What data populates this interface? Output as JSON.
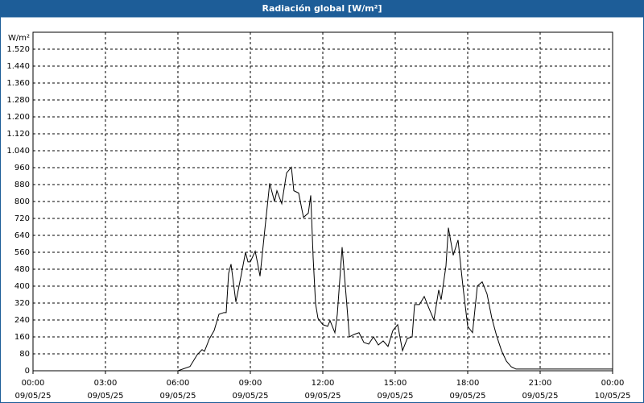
{
  "chart_data": {
    "type": "line",
    "title": "Radiación global [W/m²]",
    "y_label": "W/m²",
    "x": [
      0,
      3,
      6,
      6.5,
      6.8,
      7.0,
      7.1,
      7.3,
      7.5,
      7.7,
      7.9,
      8.0,
      8.1,
      8.2,
      8.4,
      8.6,
      8.8,
      8.9,
      9.0,
      9.2,
      9.3,
      9.4,
      9.6,
      9.8,
      10.0,
      10.1,
      10.3,
      10.5,
      10.7,
      10.8,
      11.0,
      11.2,
      11.4,
      11.5,
      11.6,
      11.7,
      11.8,
      12.0,
      12.2,
      12.3,
      12.5,
      12.6,
      12.8,
      13.0,
      13.1,
      13.3,
      13.5,
      13.7,
      13.9,
      14.1,
      14.3,
      14.5,
      14.7,
      14.9,
      15.1,
      15.3,
      15.5,
      15.7,
      15.8,
      16.0,
      16.2,
      16.4,
      16.6,
      16.8,
      16.9,
      17.1,
      17.2,
      17.4,
      17.6,
      17.8,
      18.0,
      18.2,
      18.4,
      18.6,
      18.8,
      19.0,
      19.2,
      19.4,
      19.6,
      19.8,
      20.0,
      24
    ],
    "series": [
      {
        "name": "Radiación global",
        "color": "#000000",
        "values": [
          0,
          0,
          0,
          20,
          76,
          100,
          92,
          150,
          190,
          267,
          275,
          275,
          460,
          504,
          325,
          440,
          560,
          515,
          515,
          565,
          508,
          447,
          668,
          886,
          800,
          851,
          790,
          935,
          962,
          851,
          840,
          725,
          745,
          829,
          535,
          317,
          248,
          218,
          210,
          237,
          180,
          267,
          584,
          305,
          160,
          172,
          180,
          134,
          126,
          160,
          122,
          141,
          115,
          190,
          218,
          95,
          153,
          160,
          313,
          313,
          351,
          294,
          240,
          382,
          336,
          496,
          676,
          546,
          618,
          401,
          210,
          180,
          401,
          420,
          363,
          248,
          164,
          95,
          46,
          19,
          8,
          8
        ]
      }
    ],
    "xlim": [
      0,
      24
    ],
    "xticks": [
      {
        "value": 0,
        "label": "00:00",
        "date": "09/05/25"
      },
      {
        "value": 3,
        "label": "03:00",
        "date": "09/05/25"
      },
      {
        "value": 6,
        "label": "06:00",
        "date": "09/05/25"
      },
      {
        "value": 9,
        "label": "09:00",
        "date": "09/05/25"
      },
      {
        "value": 12,
        "label": "12:00",
        "date": "09/05/25"
      },
      {
        "value": 15,
        "label": "15:00",
        "date": "09/05/25"
      },
      {
        "value": 18,
        "label": "18:00",
        "date": "09/05/25"
      },
      {
        "value": 21,
        "label": "21:00",
        "date": "09/05/25"
      },
      {
        "value": 24,
        "label": "00:00",
        "date": "10/05/25"
      }
    ],
    "ylim": [
      0,
      1600
    ],
    "yticks": [
      0,
      80,
      160,
      240,
      320,
      400,
      480,
      560,
      640,
      720,
      800,
      880,
      960,
      {
        "value": 1040,
        "label": "1.040"
      },
      {
        "value": 1120,
        "label": "1.120"
      },
      {
        "value": 1200,
        "label": "1.200"
      },
      {
        "value": 1280,
        "label": "1.280"
      },
      {
        "value": 1360,
        "label": "1.360"
      },
      {
        "value": 1440,
        "label": "1.440"
      },
      {
        "value": 1520,
        "label": "1.520"
      }
    ],
    "grid": true
  }
}
